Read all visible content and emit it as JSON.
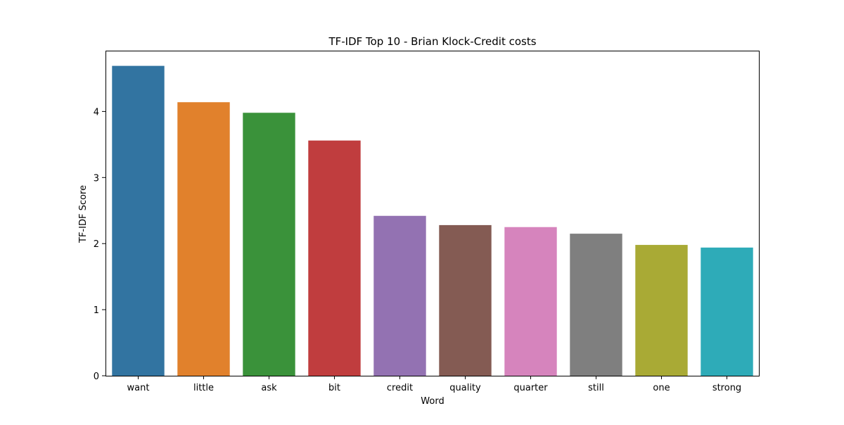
{
  "chart_data": {
    "type": "bar",
    "title": "TF-IDF Top 10 - Brian Klock-Credit costs",
    "xlabel": "Word",
    "ylabel": "TF-IDF Score",
    "categories": [
      "want",
      "little",
      "ask",
      "bit",
      "credit",
      "quality",
      "quarter",
      "still",
      "one",
      "strong"
    ],
    "values": [
      4.69,
      4.14,
      3.98,
      3.56,
      2.42,
      2.28,
      2.25,
      2.15,
      1.98,
      1.94
    ],
    "colors": [
      "#3274a1",
      "#e1812c",
      "#3a923a",
      "#c03d3e",
      "#9372b2",
      "#845b53",
      "#d684bd",
      "#7f7f7f",
      "#a9aa35",
      "#2eabb8"
    ],
    "yticks": [
      0,
      1,
      2,
      3,
      4
    ],
    "ylim": [
      0,
      4.92
    ],
    "grid": false,
    "legend": "none"
  }
}
